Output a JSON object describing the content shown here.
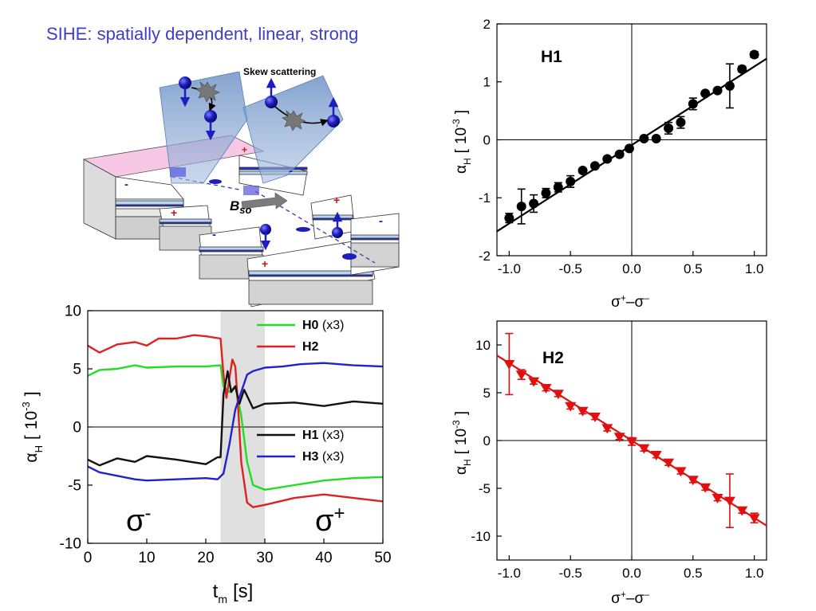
{
  "headline": "SIHE: spatially dependent, linear, strong",
  "device": {
    "skew_label": "Skew scattering",
    "bso_main": "B",
    "bso_sub": "so",
    "plus_sign": "+",
    "minus_sign": "-"
  },
  "chart_data": [
    {
      "id": "h1",
      "type": "scatter",
      "panel_label": "H1",
      "xlabel": {
        "main": "σ",
        "sup1": "+",
        "minus": "–",
        "main2": "σ",
        "sup2": "–"
      },
      "ylabel": {
        "main": "α",
        "sub": "H",
        "bracket_open": "[",
        "mantissa": "10",
        "exp": "-3",
        "bracket_close": "]"
      },
      "xlim": [
        -1.1,
        1.1
      ],
      "ylim": [
        -2,
        2
      ],
      "xticks": [
        "-1.0",
        "-0.5",
        "0.0",
        "0.5",
        "1.0"
      ],
      "xtick_values": [
        -1.0,
        -0.5,
        0.0,
        0.5,
        1.0
      ],
      "yticks": [
        "-2",
        "-1",
        "0",
        "1",
        "2"
      ],
      "ytick_values": [
        -2,
        -1,
        0,
        1,
        2
      ],
      "marker_color": "#000000",
      "marker": "circle",
      "fit_line": {
        "x": [
          -1.1,
          1.1
        ],
        "y": [
          -1.58,
          1.4
        ]
      },
      "points": [
        {
          "x": -1.0,
          "y": -1.35,
          "err": 0.08
        },
        {
          "x": -0.9,
          "y": -1.15,
          "err": 0.3
        },
        {
          "x": -0.8,
          "y": -1.1,
          "err": 0.15
        },
        {
          "x": -0.7,
          "y": -0.92,
          "err": 0.08
        },
        {
          "x": -0.6,
          "y": -0.82,
          "err": 0.08
        },
        {
          "x": -0.5,
          "y": -0.72,
          "err": 0.1
        },
        {
          "x": -0.4,
          "y": -0.53,
          "err": 0.04
        },
        {
          "x": -0.3,
          "y": -0.45,
          "err": 0.03
        },
        {
          "x": -0.2,
          "y": -0.33,
          "err": 0.03
        },
        {
          "x": -0.1,
          "y": -0.25,
          "err": 0.03
        },
        {
          "x": -0.02,
          "y": -0.15,
          "err": 0.03
        },
        {
          "x": 0.1,
          "y": 0.02,
          "err": 0.02
        },
        {
          "x": 0.2,
          "y": 0.02,
          "err": 0.02
        },
        {
          "x": 0.3,
          "y": 0.2,
          "err": 0.1
        },
        {
          "x": 0.4,
          "y": 0.3,
          "err": 0.1
        },
        {
          "x": 0.5,
          "y": 0.62,
          "err": 0.1
        },
        {
          "x": 0.6,
          "y": 0.8,
          "err": 0.03
        },
        {
          "x": 0.7,
          "y": 0.85,
          "err": 0.03
        },
        {
          "x": 0.8,
          "y": 0.93,
          "err": 0.38
        },
        {
          "x": 0.9,
          "y": 1.22,
          "err": 0.05
        },
        {
          "x": 1.0,
          "y": 1.47,
          "err": 0.05
        }
      ]
    },
    {
      "id": "h2",
      "type": "scatter",
      "panel_label": "H2",
      "xlabel": {
        "main": "σ",
        "sup1": "+",
        "minus": "–",
        "main2": "σ",
        "sup2": "–"
      },
      "ylabel": {
        "main": "α",
        "sub": "H",
        "bracket_open": "[",
        "mantissa": "10",
        "exp": "-3",
        "bracket_close": "]"
      },
      "xlim": [
        -1.1,
        1.1
      ],
      "ylim": [
        -12.5,
        12.5
      ],
      "xticks": [
        "-1.0",
        "-0.5",
        "0.0",
        "0.5",
        "1.0"
      ],
      "xtick_values": [
        -1.0,
        -0.5,
        0.0,
        0.5,
        1.0
      ],
      "yticks": [
        "-10",
        "-5",
        "0",
        "5",
        "10"
      ],
      "ytick_values": [
        -10,
        -5,
        0,
        5,
        10
      ],
      "marker_color": "#e01010",
      "marker": "triangle-down",
      "fit_line": {
        "x": [
          -1.1,
          1.1
        ],
        "y": [
          8.9,
          -8.9
        ]
      },
      "points": [
        {
          "x": -1.0,
          "y": 8.0,
          "err": 3.2
        },
        {
          "x": -0.9,
          "y": 6.9,
          "err": 0.5
        },
        {
          "x": -0.8,
          "y": 6.2,
          "err": 0.3
        },
        {
          "x": -0.7,
          "y": 5.5,
          "err": 0.3
        },
        {
          "x": -0.6,
          "y": 4.9,
          "err": 0.3
        },
        {
          "x": -0.5,
          "y": 3.6,
          "err": 0.3
        },
        {
          "x": -0.4,
          "y": 3.1,
          "err": 0.3
        },
        {
          "x": -0.3,
          "y": 2.5,
          "err": 0.3
        },
        {
          "x": -0.2,
          "y": 1.3,
          "err": 0.3
        },
        {
          "x": -0.1,
          "y": 0.4,
          "err": 0.3
        },
        {
          "x": 0.0,
          "y": -0.1,
          "err": 0.4
        },
        {
          "x": 0.1,
          "y": -0.8,
          "err": 0.3
        },
        {
          "x": 0.2,
          "y": -1.5,
          "err": 0.3
        },
        {
          "x": 0.3,
          "y": -2.3,
          "err": 0.3
        },
        {
          "x": 0.4,
          "y": -3.2,
          "err": 0.3
        },
        {
          "x": 0.5,
          "y": -4.1,
          "err": 0.3
        },
        {
          "x": 0.6,
          "y": -4.9,
          "err": 0.3
        },
        {
          "x": 0.7,
          "y": -6.0,
          "err": 0.3
        },
        {
          "x": 0.8,
          "y": -6.3,
          "err": 2.8
        },
        {
          "x": 0.9,
          "y": -7.3,
          "err": 0.3
        },
        {
          "x": 1.0,
          "y": -8.1,
          "err": 0.5
        }
      ]
    },
    {
      "id": "time",
      "type": "line",
      "xlabel": {
        "main": "t",
        "sub": "m",
        "unit": "[s]"
      },
      "ylabel": {
        "main": "α",
        "sub": "H",
        "bracket_open": "[",
        "mantissa": "10",
        "exp": "-3",
        "bracket_close": "]"
      },
      "xlim": [
        0,
        50
      ],
      "ylim": [
        -10,
        10
      ],
      "xticks": [
        "0",
        "10",
        "20",
        "30",
        "40",
        "50"
      ],
      "xtick_values": [
        0,
        10,
        20,
        30,
        40,
        50
      ],
      "yticks": [
        "-10",
        "-5",
        "0",
        "5",
        "10"
      ],
      "ytick_values": [
        -10,
        -5,
        0,
        5,
        10
      ],
      "shaded_region": [
        22.5,
        30
      ],
      "shade_color": "#e0e0e0",
      "region_labels": [
        {
          "main": "σ",
          "sup": "-"
        },
        {
          "main": "σ",
          "sup": "+"
        }
      ],
      "series": [
        {
          "name": "H0",
          "note": "(x3)",
          "color": "#22dd22",
          "x": [
            0,
            2,
            5,
            8,
            10,
            15,
            20,
            22.5,
            23,
            24,
            25,
            26,
            27,
            28,
            30,
            35,
            40,
            45,
            50
          ],
          "y": [
            4.4,
            4.9,
            5.0,
            5.3,
            5.1,
            5.2,
            5.2,
            5.3,
            3.5,
            3.0,
            3.5,
            1.0,
            -3.0,
            -5.0,
            -5.4,
            -5.0,
            -4.6,
            -4.4,
            -4.3
          ]
        },
        {
          "name": "H2",
          "note": "",
          "color": "#dd2222",
          "x": [
            0,
            2,
            5,
            8,
            10,
            12,
            15,
            18,
            20,
            22.5,
            23,
            23.5,
            24,
            24.5,
            25,
            25.5,
            26,
            27,
            28,
            30,
            35,
            40,
            45,
            50
          ],
          "y": [
            7.0,
            6.4,
            7.1,
            7.3,
            7.0,
            7.6,
            7.6,
            7.9,
            7.8,
            7.6,
            4.5,
            2.5,
            4.2,
            5.8,
            5.2,
            1.5,
            -3.0,
            -6.5,
            -6.9,
            -6.7,
            -6.1,
            -5.8,
            -6.1,
            -6.4
          ]
        },
        {
          "name": "H1",
          "note": "(x3)",
          "color": "#111111",
          "x": [
            0,
            2,
            5,
            8,
            10,
            15,
            20,
            22,
            22.5,
            23,
            23.7,
            24.3,
            25,
            25.7,
            26.5,
            28,
            30,
            35,
            40,
            45,
            50
          ],
          "y": [
            -2.8,
            -3.3,
            -2.7,
            -3.0,
            -2.5,
            -2.8,
            -3.2,
            -2.6,
            -2.6,
            2.8,
            4.8,
            3.0,
            3.5,
            2.0,
            3.2,
            1.6,
            2.0,
            2.1,
            1.8,
            2.2,
            2.0
          ]
        },
        {
          "name": "H3",
          "note": "(x3)",
          "color": "#2222cc",
          "x": [
            0,
            2,
            5,
            8,
            10,
            15,
            20,
            22,
            23,
            24,
            25,
            26,
            27,
            28,
            30,
            33,
            36,
            40,
            45,
            50
          ],
          "y": [
            -3.4,
            -3.9,
            -4.2,
            -4.5,
            -4.6,
            -4.5,
            -4.4,
            -4.5,
            -4.0,
            -1.5,
            1.5,
            3.0,
            4.5,
            4.8,
            5.1,
            5.2,
            5.4,
            5.5,
            5.3,
            5.2
          ]
        }
      ]
    }
  ]
}
